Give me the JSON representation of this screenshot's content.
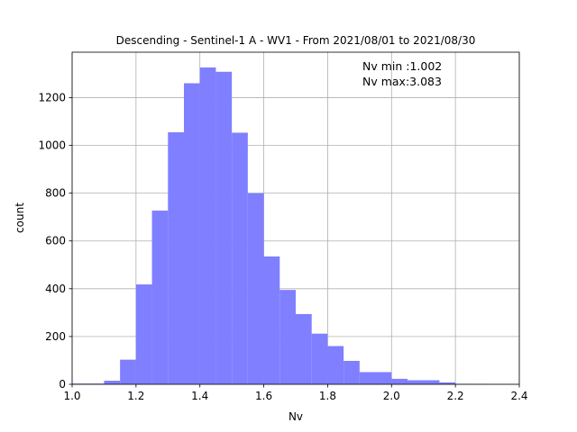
{
  "chart_data": {
    "type": "bar",
    "title": "Descending - Sentinel-1 A - WV1 - From 2021/08/01 to 2021/08/30",
    "xlabel": "Nv",
    "ylabel": "count",
    "xlim": [
      1.0,
      2.4
    ],
    "ylim": [
      0,
      1390
    ],
    "grid": true,
    "bar_color": "#7f7fff",
    "x_ticks": [
      1.0,
      1.2,
      1.4,
      1.6,
      1.8,
      2.0,
      2.2,
      2.4
    ],
    "x_tick_labels": [
      "1.0",
      "1.2",
      "1.4",
      "1.6",
      "1.8",
      "2.0",
      "2.2",
      "2.4"
    ],
    "y_ticks": [
      0,
      200,
      400,
      600,
      800,
      1000,
      1200
    ],
    "y_tick_labels": [
      "0",
      "200",
      "400",
      "600",
      "800",
      "1000",
      "1200"
    ],
    "bins": [
      {
        "x0": 1.0,
        "x1": 1.05,
        "count": 3
      },
      {
        "x0": 1.05,
        "x1": 1.1,
        "count": 3
      },
      {
        "x0": 1.1,
        "x1": 1.15,
        "count": 15
      },
      {
        "x0": 1.15,
        "x1": 1.2,
        "count": 103
      },
      {
        "x0": 1.2,
        "x1": 1.25,
        "count": 418
      },
      {
        "x0": 1.25,
        "x1": 1.3,
        "count": 727
      },
      {
        "x0": 1.3,
        "x1": 1.35,
        "count": 1055
      },
      {
        "x0": 1.35,
        "x1": 1.4,
        "count": 1260
      },
      {
        "x0": 1.4,
        "x1": 1.45,
        "count": 1326
      },
      {
        "x0": 1.45,
        "x1": 1.5,
        "count": 1308
      },
      {
        "x0": 1.5,
        "x1": 1.55,
        "count": 1053
      },
      {
        "x0": 1.55,
        "x1": 1.6,
        "count": 800
      },
      {
        "x0": 1.6,
        "x1": 1.65,
        "count": 535
      },
      {
        "x0": 1.65,
        "x1": 1.7,
        "count": 395
      },
      {
        "x0": 1.7,
        "x1": 1.75,
        "count": 294
      },
      {
        "x0": 1.75,
        "x1": 1.8,
        "count": 212
      },
      {
        "x0": 1.8,
        "x1": 1.85,
        "count": 160
      },
      {
        "x0": 1.85,
        "x1": 1.9,
        "count": 98
      },
      {
        "x0": 1.9,
        "x1": 2.0,
        "count": 51
      },
      {
        "x0": 2.0,
        "x1": 2.05,
        "count": 23
      },
      {
        "x0": 2.05,
        "x1": 2.15,
        "count": 17
      },
      {
        "x0": 2.15,
        "x1": 2.2,
        "count": 8
      },
      {
        "x0": 2.2,
        "x1": 2.25,
        "count": 2
      },
      {
        "x0": 2.25,
        "x1": 2.3,
        "count": 1
      }
    ],
    "annotations": [
      "Nv min :1.002",
      "Nv max:3.083"
    ]
  }
}
